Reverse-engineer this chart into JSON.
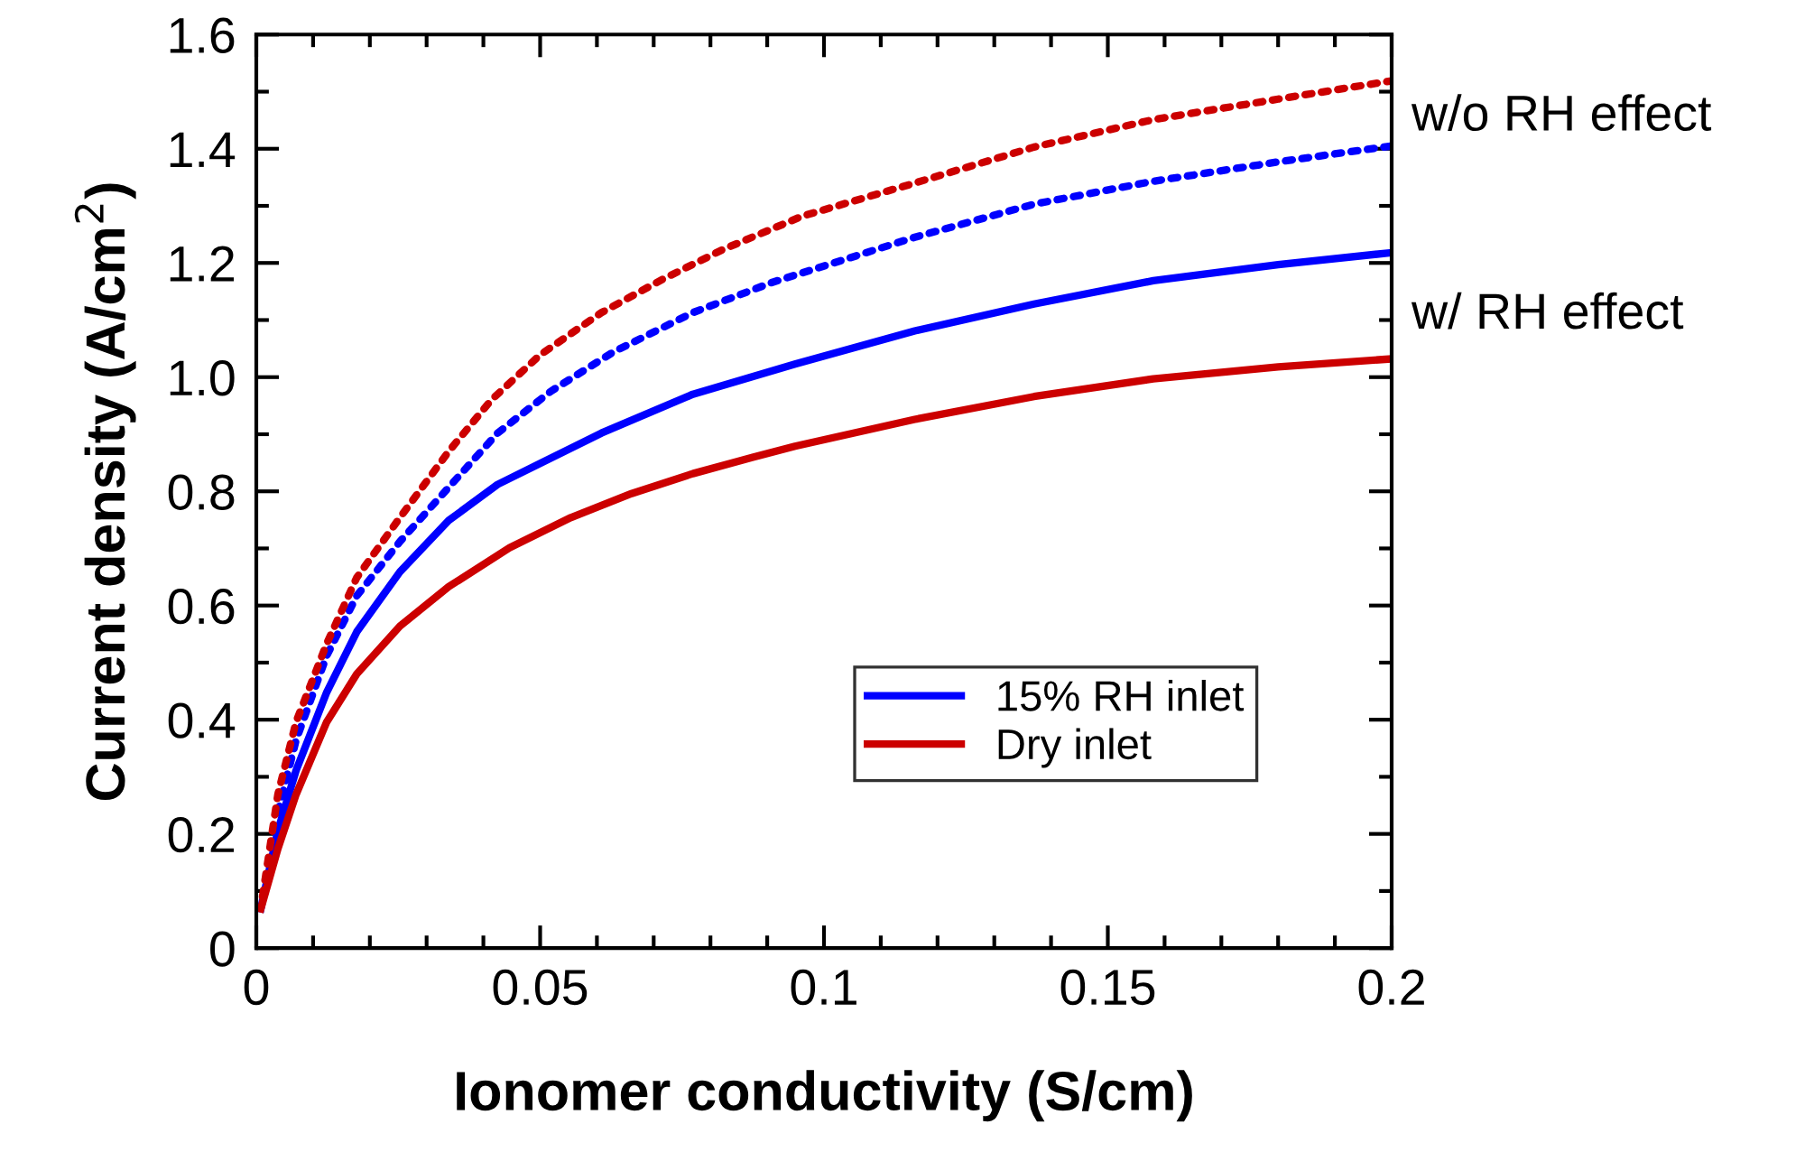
{
  "chart_data": {
    "type": "line",
    "xlabel": "Ionomer conductivity (S/cm)",
    "ylabel": "Current density (A/cm$^{2}$)",
    "xlim": [
      0,
      0.2
    ],
    "ylim": [
      0,
      1.6
    ],
    "xticks": [
      0,
      0.05,
      0.1,
      0.15,
      0.2
    ],
    "yticks": [
      0,
      0.2,
      0.4,
      0.6,
      0.8,
      {
        "value": 1.0,
        "label": "1.0"
      },
      1.2,
      1.4,
      1.6
    ],
    "grid": false,
    "legend": "bottom right",
    "marker": "none",
    "series": [
      {
        "name": "15% RH inlet",
        "color": "#0000ff",
        "line_style": "solid",
        "x": [
          0.0008,
          0.0038,
          0.007,
          0.0124,
          0.0177,
          0.0253,
          0.0339,
          0.0425,
          0.0608,
          0.0769,
          0.0949,
          0.116,
          0.137,
          0.158,
          0.18,
          0.2
        ],
        "values": [
          0.069,
          0.206,
          0.311,
          0.448,
          0.554,
          0.659,
          0.749,
          0.812,
          0.902,
          0.97,
          1.023,
          1.081,
          1.128,
          1.169,
          1.197,
          1.218
        ]
      },
      {
        "name": "Dry inlet",
        "color": "#cc0000",
        "line_style": "solid",
        "x": [
          0.0008,
          0.0038,
          0.007,
          0.0124,
          0.0177,
          0.0253,
          0.0339,
          0.0446,
          0.0554,
          0.0661,
          0.0769,
          0.0876,
          0.0949,
          0.116,
          0.137,
          0.158,
          0.18,
          0.2
        ],
        "values": [
          0.069,
          0.174,
          0.269,
          0.396,
          0.48,
          0.564,
          0.633,
          0.701,
          0.754,
          0.796,
          0.831,
          0.86,
          0.879,
          0.926,
          0.966,
          0.997,
          1.018,
          1.032
        ]
      },
      {
        "color": "#0000ff",
        "line_style": "dotted",
        "x": [
          0.0038,
          0.007,
          0.0124,
          0.0177,
          0.0253,
          0.0339,
          0.0425,
          0.052,
          0.0629,
          0.0769,
          0.0909,
          0.116,
          0.137,
          0.158,
          0.18,
          0.2
        ],
        "values": [
          0.237,
          0.364,
          0.512,
          0.617,
          0.712,
          0.807,
          0.902,
          0.976,
          1.044,
          1.113,
          1.166,
          1.245,
          1.303,
          1.343,
          1.377,
          1.405
        ]
      },
      {
        "color": "#cc0000",
        "line_style": "dotted",
        "x": [
          0.0011,
          0.0038,
          0.007,
          0.0124,
          0.0177,
          0.0253,
          0.0339,
          0.0414,
          0.05,
          0.0608,
          0.0715,
          0.0823,
          0.0962,
          0.116,
          0.137,
          0.158,
          0.18,
          0.2
        ],
        "values": [
          0.09,
          0.269,
          0.396,
          0.533,
          0.649,
          0.754,
          0.87,
          0.96,
          1.039,
          1.113,
          1.171,
          1.224,
          1.282,
          1.34,
          1.403,
          1.451,
          1.487,
          1.519
        ]
      }
    ],
    "annotations": [
      "w/o RH effect",
      "w/ RH effect"
    ]
  }
}
